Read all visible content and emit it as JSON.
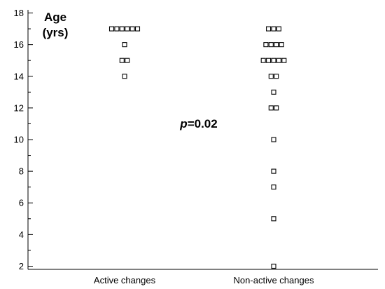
{
  "chart_data": {
    "type": "scatter",
    "ylabel": [
      "Age",
      "(yrs)"
    ],
    "ylim": [
      1.8,
      18.2
    ],
    "yticks": [
      2,
      4,
      6,
      8,
      10,
      12,
      14,
      16,
      18
    ],
    "categories": [
      "Active changes",
      "Non-active changes"
    ],
    "series": [
      {
        "category": "Active changes",
        "values": [
          17,
          17,
          17,
          17,
          17,
          17,
          16,
          15,
          15,
          14
        ]
      },
      {
        "category": "Non-active changes",
        "values": [
          17,
          17,
          17,
          16,
          16,
          16,
          16,
          15,
          15,
          15,
          15,
          15,
          14,
          14,
          13,
          12,
          12,
          10,
          8,
          7,
          5,
          2
        ]
      }
    ],
    "annotation": {
      "italic": "p",
      "rest": "=0.02"
    }
  }
}
